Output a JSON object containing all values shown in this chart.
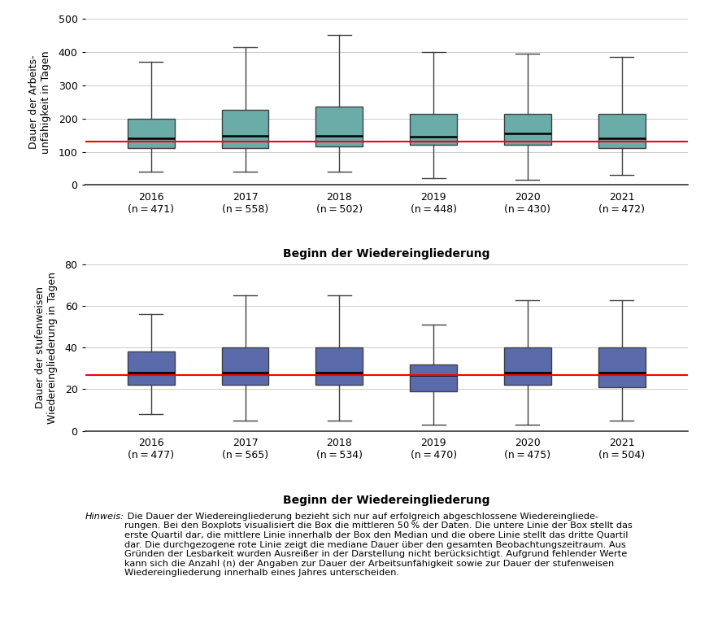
{
  "top": {
    "years": [
      "2016",
      "2017",
      "2018",
      "2019",
      "2020",
      "2021"
    ],
    "ns": [
      471,
      558,
      502,
      448,
      430,
      472
    ],
    "whislo": [
      40,
      40,
      40,
      20,
      15,
      30
    ],
    "q1": [
      110,
      110,
      115,
      120,
      120,
      110
    ],
    "med": [
      140,
      148,
      148,
      145,
      155,
      140
    ],
    "q3": [
      200,
      225,
      235,
      215,
      215,
      215
    ],
    "whishi": [
      370,
      415,
      450,
      400,
      395,
      385
    ],
    "red_line": 130,
    "ylim": [
      0,
      500
    ],
    "yticks": [
      0,
      100,
      200,
      300,
      400,
      500
    ],
    "ylabel": "Dauer der Arbeits-\nunfähigkeit in Tagen",
    "xlabel": "Beginn der Wiedereingliederung",
    "box_color": "#6aada8",
    "median_color": "#000000",
    "whisker_color": "#404040",
    "red_line_color": "#ff0000"
  },
  "bottom": {
    "years": [
      "2016",
      "2017",
      "2018",
      "2019",
      "2020",
      "2021"
    ],
    "ns": [
      477,
      565,
      534,
      470,
      475,
      504
    ],
    "whislo": [
      8,
      5,
      5,
      3,
      3,
      5
    ],
    "q1": [
      22,
      22,
      22,
      19,
      22,
      21
    ],
    "med": [
      28,
      28,
      28,
      27,
      28,
      28
    ],
    "q3": [
      38,
      40,
      40,
      32,
      40,
      40
    ],
    "whishi": [
      56,
      65,
      65,
      51,
      63,
      63
    ],
    "red_line": 27,
    "ylim": [
      0,
      80
    ],
    "yticks": [
      0,
      20,
      40,
      60,
      80
    ],
    "ylabel": "Dauer der stufenweisen\nWiedereingliederung in Tagen",
    "xlabel": "Beginn der Wiedereingliederung",
    "box_color": "#5b6aab",
    "median_color": "#000000",
    "whisker_color": "#404040",
    "red_line_color": "#ff0000"
  },
  "note_hinweis": "Hinweis:",
  "note_rest": " Die Dauer der Wiedereingliederung bezieht sich nur auf erfolgreich abgeschlossene Wiedereingliede-\nrungen. Bei den Boxplots visualisiert die Box die mittleren 50 % der Daten. Die untere Linie der Box stellt das\nerste Quartil dar, die mittlere Linie innerhalb der Box den Median und die obere Linie stellt das dritte Quartil\ndar. Die durchgezogene rote Linie zeigt die mediane Dauer über den gesamten Beobachtungszeitraum. Aus\nGründen der Lesbarkeit wurden Ausreißer in der Darstellung nicht berücksichtigt. Aufgrund fehlender Werte\nkann sich die Anzahl (n) der Angaben zur Dauer der Arbeitsunfähigkeit sowie zur Dauer der stufenweisen\nWiedereingliederung innerhalb eines Jahres unterscheiden.",
  "background_color": "#ffffff",
  "grid_color": "#cccccc"
}
